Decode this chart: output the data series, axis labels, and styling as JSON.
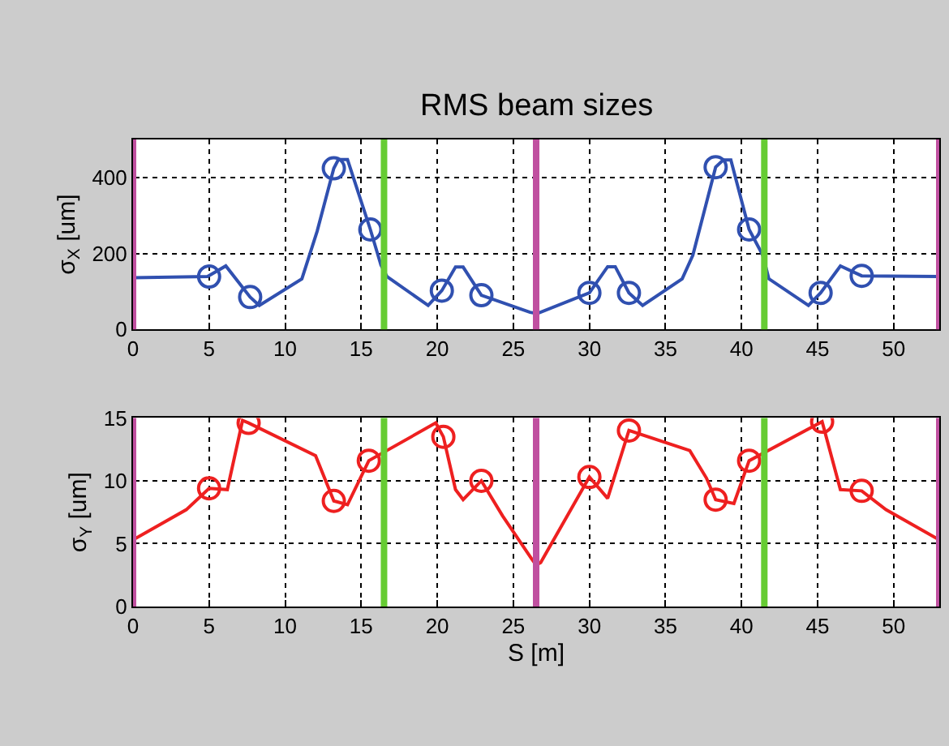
{
  "chart_data": [
    {
      "type": "line",
      "title": "RMS beam sizes",
      "ylabel": "σ$_{X}$ [um]",
      "xlim": [
        0,
        53
      ],
      "xticks": [
        0,
        5,
        10,
        15,
        20,
        25,
        30,
        35,
        40,
        45,
        50
      ],
      "ylim": [
        0,
        500
      ],
      "yticks": [
        0,
        200,
        400
      ],
      "grid": true,
      "series": [
        {
          "color": "#3050b0",
          "marker": "none",
          "x": [
            0,
            4.9,
            6.1,
            7.7,
            8.3,
            11.1,
            12.1,
            13.2,
            13.5,
            14.1,
            15.6,
            16.3,
            16.7,
            19.4,
            20.3,
            21.2,
            21.7,
            22.9,
            26.1,
            26.5,
            26.65,
            30,
            31.2,
            31.7,
            32.6,
            33.5,
            36.1,
            36.8,
            38.3,
            38.8,
            39.3,
            40.5,
            41.4,
            41.8,
            44.4,
            45.2,
            46.5,
            47.9,
            53
          ],
          "values": [
            136,
            139,
            167,
            85,
            63,
            133,
            258,
            424,
            447,
            447,
            263,
            169,
            139,
            63,
            102,
            164,
            164,
            90,
            45,
            42,
            43,
            96,
            165,
            165,
            96,
            63,
            133,
            195,
            427,
            446,
            446,
            263,
            195,
            133,
            63,
            96,
            167,
            141,
            139
          ]
        },
        {
          "type": "scatter",
          "marker": "circle",
          "color": "#3050b0",
          "x": [
            5,
            7.7,
            13.2,
            15.6,
            20.3,
            22.9,
            30,
            32.6,
            38.3,
            40.5,
            45.2,
            47.9
          ],
          "values": [
            139,
            85,
            424,
            263,
            102,
            90,
            96,
            96,
            427,
            263,
            96,
            141
          ]
        }
      ],
      "ref_lines": [
        {
          "axis": "x",
          "value": 0,
          "color": "#c050a0"
        },
        {
          "axis": "x",
          "value": 16.5,
          "color": "#66cc33"
        },
        {
          "axis": "x",
          "value": 26.5,
          "color": "#c050a0"
        },
        {
          "axis": "x",
          "value": 41.5,
          "color": "#66cc33"
        },
        {
          "axis": "x",
          "value": 53,
          "color": "#c050a0"
        }
      ]
    },
    {
      "type": "line",
      "xlabel": "S [m]",
      "ylabel": "σ$_{Y}$ [um]",
      "xlim": [
        0,
        53
      ],
      "xticks": [
        0,
        5,
        10,
        15,
        20,
        25,
        30,
        35,
        40,
        45,
        50
      ],
      "ylim": [
        0,
        15
      ],
      "yticks": [
        0,
        5,
        10,
        15
      ],
      "grid": true,
      "series": [
        {
          "color": "#ee2020",
          "marker": "none",
          "x": [
            0,
            3.5,
            5,
            6.2,
            7.2,
            7.6,
            12.0,
            13.2,
            14.1,
            15.5,
            19.9,
            20.4,
            21.2,
            21.7,
            22.9,
            24.3,
            26.2,
            26.5,
            26.8,
            30,
            31.2,
            32.6,
            36.6,
            37.7,
            38.3,
            39.5,
            40.5,
            45.3,
            46.5,
            47.9,
            49.5,
            53
          ],
          "values": [
            5.3,
            7.7,
            9.4,
            9.3,
            14.8,
            14.6,
            12.0,
            8.4,
            8.1,
            11.6,
            14.6,
            13.5,
            9.3,
            8.5,
            10.0,
            7.2,
            3.8,
            3.3,
            3.5,
            10.3,
            8.6,
            14.0,
            12.4,
            10.2,
            8.5,
            8.2,
            11.6,
            14.7,
            9.3,
            9.2,
            7.7,
            5.3
          ]
        },
        {
          "type": "scatter",
          "marker": "circle",
          "color": "#ee2020",
          "x": [
            5,
            7.6,
            13.2,
            15.5,
            20.4,
            22.9,
            30,
            32.6,
            38.3,
            40.5,
            45.3,
            47.9
          ],
          "values": [
            9.4,
            14.6,
            8.4,
            11.6,
            13.5,
            10.0,
            10.3,
            14.0,
            8.5,
            11.6,
            14.7,
            9.2
          ]
        }
      ],
      "ref_lines": [
        {
          "axis": "x",
          "value": 0,
          "color": "#c050a0"
        },
        {
          "axis": "x",
          "value": 16.5,
          "color": "#66cc33"
        },
        {
          "axis": "x",
          "value": 26.5,
          "color": "#c050a0"
        },
        {
          "axis": "x",
          "value": 41.5,
          "color": "#66cc33"
        },
        {
          "axis": "x",
          "value": 53,
          "color": "#c050a0"
        }
      ]
    }
  ]
}
